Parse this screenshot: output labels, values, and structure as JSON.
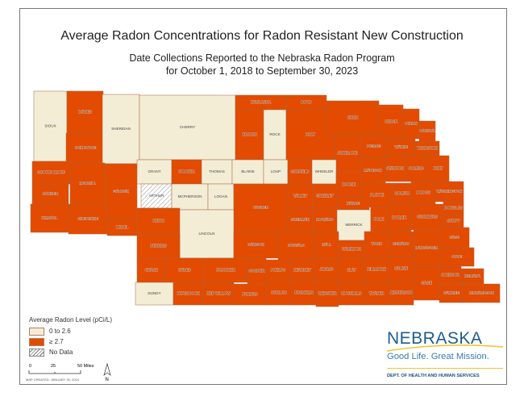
{
  "title": "Average Radon Concentrations for Radon Resistant New Construction",
  "subtitle1": "Date Collections Reported to the Nebraska Radon Program",
  "subtitle2": "for October 1, 2018 to September 30, 2023",
  "colors": {
    "low": "#f3edd6",
    "high": "#e24b00",
    "border": "#a8653e"
  },
  "legend": {
    "title": "Average Radon Level (pCi/L)",
    "items": [
      {
        "label": "0 to 2.6",
        "key": "low"
      },
      {
        "label": "≥ 2.7",
        "key": "high"
      },
      {
        "label": "No Data",
        "key": "nodata"
      }
    ]
  },
  "scale_bar": {
    "ticks": [
      "0",
      "25",
      "50 Miles"
    ]
  },
  "north_arrow": "N",
  "map_created": "MAP CREATED: JANUARY 30, 2024",
  "logo": {
    "name": "NEBRASKA",
    "tagline": "Good Life. Great Mission.",
    "dept": "DEPT. OF HEALTH AND HUMAN SERVICES"
  },
  "counties": [
    {
      "name": "SIOUX",
      "level": "low"
    },
    {
      "name": "DAWES",
      "level": "high"
    },
    {
      "name": "BOX BUTTE",
      "level": "high"
    },
    {
      "name": "SHERIDAN",
      "level": "low"
    },
    {
      "name": "CHERRY",
      "level": "low"
    },
    {
      "name": "KEYA PAHA",
      "level": "high"
    },
    {
      "name": "BOYD",
      "level": "high"
    },
    {
      "name": "BROWN",
      "level": "high"
    },
    {
      "name": "ROCK",
      "level": "low"
    },
    {
      "name": "HOLT",
      "level": "high"
    },
    {
      "name": "KNOX",
      "level": "high"
    },
    {
      "name": "CEDAR",
      "level": "high"
    },
    {
      "name": "DIXON",
      "level": "high"
    },
    {
      "name": "DAKOTA",
      "level": "high"
    },
    {
      "name": "PIERCE",
      "level": "high"
    },
    {
      "name": "WAYNE",
      "level": "high"
    },
    {
      "name": "THURSTON",
      "level": "high"
    },
    {
      "name": "ANTELOPE",
      "level": "high"
    },
    {
      "name": "MADISON",
      "level": "high"
    },
    {
      "name": "STANTON",
      "level": "high"
    },
    {
      "name": "CUMING",
      "level": "high"
    },
    {
      "name": "BURT",
      "level": "high"
    },
    {
      "name": "SCOTTS BLUFF",
      "level": "high"
    },
    {
      "name": "MORRILL",
      "level": "high"
    },
    {
      "name": "GARDEN",
      "level": "high"
    },
    {
      "name": "BANNER",
      "level": "high"
    },
    {
      "name": "KIMBALL",
      "level": "high"
    },
    {
      "name": "CHEYENNE",
      "level": "high"
    },
    {
      "name": "DEUEL",
      "level": "high"
    },
    {
      "name": "GRANT",
      "level": "low"
    },
    {
      "name": "HOOKER",
      "level": "high"
    },
    {
      "name": "THOMAS",
      "level": "low"
    },
    {
      "name": "BLAINE",
      "level": "low"
    },
    {
      "name": "LOUP",
      "level": "low"
    },
    {
      "name": "GARFIELD",
      "level": "high"
    },
    {
      "name": "WHEELER",
      "level": "low"
    },
    {
      "name": "ARTHUR",
      "level": "nodata"
    },
    {
      "name": "MCPHERSON",
      "level": "low"
    },
    {
      "name": "LOGAN",
      "level": "low"
    },
    {
      "name": "CUSTER",
      "level": "high"
    },
    {
      "name": "VALLEY",
      "level": "high"
    },
    {
      "name": "GREELEY",
      "level": "high"
    },
    {
      "name": "BOONE",
      "level": "high"
    },
    {
      "name": "PLATTE",
      "level": "high"
    },
    {
      "name": "COLFAX",
      "level": "high"
    },
    {
      "name": "DODGE",
      "level": "high"
    },
    {
      "name": "WASHINGTON",
      "level": "high"
    },
    {
      "name": "NANCE",
      "level": "high"
    },
    {
      "name": "SHERMAN",
      "level": "high"
    },
    {
      "name": "HOWARD",
      "level": "high"
    },
    {
      "name": "MERRICK",
      "level": "low"
    },
    {
      "name": "POLK",
      "level": "high"
    },
    {
      "name": "BUTLER",
      "level": "high"
    },
    {
      "name": "SAUNDERS",
      "level": "high"
    },
    {
      "name": "DOUGLAS",
      "level": "high"
    },
    {
      "name": "SARPY",
      "level": "high"
    },
    {
      "name": "KEITH",
      "level": "high"
    },
    {
      "name": "LINCOLN",
      "level": "low"
    },
    {
      "name": "PERKINS",
      "level": "high"
    },
    {
      "name": "DAWSON",
      "level": "high"
    },
    {
      "name": "BUFFALO",
      "level": "high"
    },
    {
      "name": "HALL",
      "level": "high"
    },
    {
      "name": "HAMILTON",
      "level": "high"
    },
    {
      "name": "YORK",
      "level": "high"
    },
    {
      "name": "SEWARD",
      "level": "high"
    },
    {
      "name": "LANCASTER",
      "level": "high"
    },
    {
      "name": "CASS",
      "level": "high"
    },
    {
      "name": "OTOE",
      "level": "high"
    },
    {
      "name": "CHASE",
      "level": "high"
    },
    {
      "name": "HAYES",
      "level": "high"
    },
    {
      "name": "FRONTIER",
      "level": "high"
    },
    {
      "name": "GOSPER",
      "level": "high"
    },
    {
      "name": "PHELPS",
      "level": "high"
    },
    {
      "name": "KEARNEY",
      "level": "high"
    },
    {
      "name": "ADAMS",
      "level": "high"
    },
    {
      "name": "CLAY",
      "level": "high"
    },
    {
      "name": "FILLMORE",
      "level": "high"
    },
    {
      "name": "SALINE",
      "level": "high"
    },
    {
      "name": "GAGE",
      "level": "high"
    },
    {
      "name": "JOHNSON",
      "level": "high"
    },
    {
      "name": "NEMAHA",
      "level": "high"
    },
    {
      "name": "DUNDY",
      "level": "low"
    },
    {
      "name": "HITCHCOCK",
      "level": "high"
    },
    {
      "name": "RED WILLOW",
      "level": "high"
    },
    {
      "name": "FURNAS",
      "level": "high"
    },
    {
      "name": "HARLAN",
      "level": "high"
    },
    {
      "name": "FRANKLIN",
      "level": "high"
    },
    {
      "name": "WEBSTER",
      "level": "high"
    },
    {
      "name": "NUCKOLLS",
      "level": "high"
    },
    {
      "name": "THAYER",
      "level": "high"
    },
    {
      "name": "JEFFERSON",
      "level": "high"
    },
    {
      "name": "PAWNEE",
      "level": "high"
    },
    {
      "name": "RICHARDSON",
      "level": "high"
    }
  ]
}
